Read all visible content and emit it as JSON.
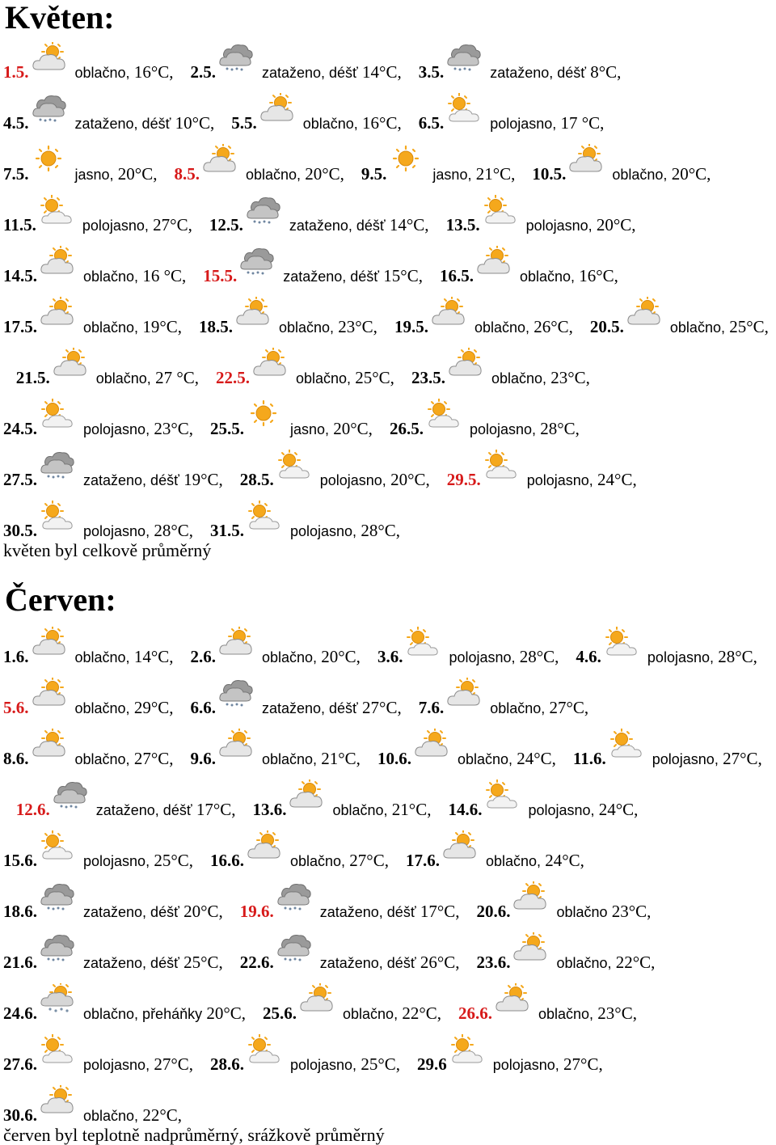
{
  "months": [
    {
      "title": "Květen:",
      "summary": "květen byl celkově průměrný",
      "entries": [
        {
          "date": "1.5.",
          "icon": "cloudy-sun-icon",
          "condition": "oblačno,",
          "temp": "16°C,",
          "highlight": true
        },
        {
          "date": "2.5.",
          "icon": "overcast-rain-icon",
          "condition": "zataženo, déšť",
          "temp": "14°C,",
          "highlight": false
        },
        {
          "date": "3.5.",
          "icon": "overcast-rain-icon",
          "condition": "zataženo, déšť",
          "temp": "8°C,",
          "highlight": false
        },
        {
          "date": "4.5.",
          "icon": "overcast-rain-icon",
          "condition": "zataženo, déšť",
          "temp": "10°C,",
          "highlight": false
        },
        {
          "date": "5.5.",
          "icon": "cloudy-sun-icon",
          "condition": "oblačno,",
          "temp": "16°C,",
          "highlight": false
        },
        {
          "date": "6.5.",
          "icon": "partly-sunny-icon",
          "condition": "polojasno,",
          "temp": "17 °C,",
          "highlight": false
        },
        {
          "date": "7.5.",
          "icon": "sun-icon",
          "condition": "jasno,",
          "temp": "20°C,",
          "highlight": false
        },
        {
          "date": "8.5.",
          "icon": "cloudy-sun-icon",
          "condition": "oblačno,",
          "temp": "20°C,",
          "highlight": true
        },
        {
          "date": "9.5.",
          "icon": "sun-icon",
          "condition": "jasno,",
          "temp": "21°C,",
          "highlight": false
        },
        {
          "date": "10.5.",
          "icon": "cloudy-sun-icon",
          "condition": "oblačno,",
          "temp": "20°C,",
          "highlight": false
        },
        {
          "date": "11.5.",
          "icon": "partly-sunny-icon",
          "condition": "polojasno,",
          "temp": "27°C,",
          "highlight": false
        },
        {
          "date": "12.5.",
          "icon": "overcast-rain-icon",
          "condition": "zataženo, déšť",
          "temp": "14°C,",
          "highlight": false
        },
        {
          "date": "13.5.",
          "icon": "partly-sunny-icon",
          "condition": "polojasno,",
          "temp": "20°C,",
          "highlight": false
        },
        {
          "date": "14.5.",
          "icon": "cloudy-sun-icon",
          "condition": "oblačno,",
          "temp": "16 °C,",
          "highlight": false
        },
        {
          "date": "15.5.",
          "icon": "overcast-rain-icon",
          "condition": "zataženo, déšť",
          "temp": "15°C,",
          "highlight": true
        },
        {
          "date": "16.5.",
          "icon": "cloudy-sun-icon",
          "condition": "oblačno,",
          "temp": "16°C,",
          "highlight": false
        },
        {
          "date": "17.5.",
          "icon": "cloudy-sun-icon",
          "condition": "oblačno,",
          "temp": "19°C,",
          "highlight": false
        },
        {
          "date": "18.5.",
          "icon": "cloudy-sun-icon",
          "condition": "oblačno,",
          "temp": "23°C,",
          "highlight": false
        },
        {
          "date": "19.5.",
          "icon": "cloudy-sun-icon",
          "condition": "oblačno,",
          "temp": "26°C,",
          "highlight": false
        },
        {
          "date": "20.5.",
          "icon": "cloudy-sun-icon",
          "condition": "oblačno,",
          "temp": "25°C,",
          "highlight": false
        },
        {
          "date": "21.5.",
          "icon": "cloudy-sun-icon",
          "condition": "oblačno,",
          "temp": "27 °C,",
          "highlight": false
        },
        {
          "date": "22.5.",
          "icon": "cloudy-sun-icon",
          "condition": "oblačno,",
          "temp": "25°C,",
          "highlight": true
        },
        {
          "date": "23.5.",
          "icon": "cloudy-sun-icon",
          "condition": "oblačno,",
          "temp": "23°C,",
          "highlight": false
        },
        {
          "date": "24.5.",
          "icon": "partly-sunny-icon",
          "condition": "polojasno,",
          "temp": "23°C,",
          "highlight": false
        },
        {
          "date": "25.5.",
          "icon": "sun-icon",
          "condition": "jasno,",
          "temp": "20°C,",
          "highlight": false
        },
        {
          "date": "26.5.",
          "icon": "partly-sunny-icon",
          "condition": "polojasno,",
          "temp": "28°C,",
          "highlight": false
        },
        {
          "date": "27.5.",
          "icon": "overcast-rain-icon",
          "condition": "zataženo, déšť",
          "temp": "19°C,",
          "highlight": false
        },
        {
          "date": "28.5.",
          "icon": "partly-sunny-icon",
          "condition": "polojasno,",
          "temp": "20°C,",
          "highlight": false
        },
        {
          "date": "29.5.",
          "icon": "partly-sunny-icon",
          "condition": "polojasno,",
          "temp": "24°C,",
          "highlight": true
        },
        {
          "date": "30.5.",
          "icon": "partly-sunny-icon",
          "condition": "polojasno,",
          "temp": "28°C,",
          "highlight": false
        },
        {
          "date": "31.5.",
          "icon": "partly-sunny-icon",
          "condition": "polojasno,",
          "temp": "28°C,",
          "highlight": false
        }
      ]
    },
    {
      "title": "Červen:",
      "summary": "červen byl teplotně nadprůměrný, srážkově průměrný",
      "entries": [
        {
          "date": "1.6.",
          "icon": "cloudy-sun-icon",
          "condition": "oblačno,",
          "temp": "14°C,",
          "highlight": false
        },
        {
          "date": "2.6.",
          "icon": "cloudy-sun-icon",
          "condition": "oblačno,",
          "temp": "20°C,",
          "highlight": false
        },
        {
          "date": "3.6.",
          "icon": "partly-sunny-icon",
          "condition": "polojasno,",
          "temp": "28°C,",
          "highlight": false
        },
        {
          "date": "4.6.",
          "icon": "partly-sunny-icon",
          "condition": "polojasno,",
          "temp": "28°C,",
          "highlight": false
        },
        {
          "date": "5.6.",
          "icon": "cloudy-sun-icon",
          "condition": "oblačno,",
          "temp": "29°C,",
          "highlight": true
        },
        {
          "date": "6.6.",
          "icon": "overcast-rain-icon",
          "condition": "zataženo, déšť",
          "temp": "27°C,",
          "highlight": false
        },
        {
          "date": "7.6.",
          "icon": "cloudy-sun-icon",
          "condition": "oblačno,",
          "temp": "27°C,",
          "highlight": false
        },
        {
          "date": "8.6.",
          "icon": "cloudy-sun-icon",
          "condition": "oblačno,",
          "temp": "27°C,",
          "highlight": false
        },
        {
          "date": "9.6.",
          "icon": "cloudy-sun-icon",
          "condition": "oblačno,",
          "temp": "21°C,",
          "highlight": false
        },
        {
          "date": "10.6.",
          "icon": "cloudy-sun-icon",
          "condition": "oblačno,",
          "temp": "24°C,",
          "highlight": false
        },
        {
          "date": "11.6.",
          "icon": "partly-sunny-icon",
          "condition": "polojasno,",
          "temp": "27°C,",
          "highlight": false
        },
        {
          "date": "12.6.",
          "icon": "overcast-rain-icon",
          "condition": "zataženo, déšť",
          "temp": "17°C,",
          "highlight": true
        },
        {
          "date": "13.6.",
          "icon": "cloudy-sun-icon",
          "condition": "oblačno,",
          "temp": "21°C,",
          "highlight": false
        },
        {
          "date": "14.6.",
          "icon": "partly-sunny-icon",
          "condition": "polojasno,",
          "temp": "24°C,",
          "highlight": false
        },
        {
          "date": "15.6.",
          "icon": "partly-sunny-icon",
          "condition": "polojasno,",
          "temp": "25°C,",
          "highlight": false
        },
        {
          "date": "16.6.",
          "icon": "cloudy-sun-icon",
          "condition": "oblačno,",
          "temp": "27°C,",
          "highlight": false
        },
        {
          "date": "17.6.",
          "icon": "cloudy-sun-icon",
          "condition": "oblačno,",
          "temp": "24°C,",
          "highlight": false
        },
        {
          "date": "18.6.",
          "icon": "overcast-rain-icon",
          "condition": "zataženo, déšť",
          "temp": "20°C,",
          "highlight": false
        },
        {
          "date": "19.6.",
          "icon": "overcast-rain-icon",
          "condition": "zataženo, déšť",
          "temp": "17°C,",
          "highlight": true
        },
        {
          "date": "20.6.",
          "icon": "cloudy-sun-icon",
          "condition": "oblačno",
          "temp": "23°C,",
          "highlight": false
        },
        {
          "date": "21.6.",
          "icon": "overcast-rain-icon",
          "condition": "zataženo, déšť",
          "temp": "25°C,",
          "highlight": false
        },
        {
          "date": "22.6.",
          "icon": "overcast-rain-icon",
          "condition": "zataženo, déšť",
          "temp": "26°C,",
          "highlight": false
        },
        {
          "date": "23.6.",
          "icon": "cloudy-sun-icon",
          "condition": "oblačno,",
          "temp": "22°C,",
          "highlight": false
        },
        {
          "date": "24.6.",
          "icon": "showers-icon",
          "condition": "oblačno, přeháňky",
          "temp": "20°C,",
          "highlight": false
        },
        {
          "date": "25.6.",
          "icon": "cloudy-sun-icon",
          "condition": "oblačno,",
          "temp": "22°C,",
          "highlight": false
        },
        {
          "date": "26.6.",
          "icon": "cloudy-sun-icon",
          "condition": "oblačno,",
          "temp": "23°C,",
          "highlight": true
        },
        {
          "date": "27.6.",
          "icon": "partly-sunny-icon",
          "condition": "polojasno,",
          "temp": "27°C,",
          "highlight": false
        },
        {
          "date": "28.6.",
          "icon": "partly-sunny-icon",
          "condition": "polojasno,",
          "temp": "25°C,",
          "highlight": false
        },
        {
          "date": "29.6",
          "icon": "partly-sunny-icon",
          "condition": "polojasno,",
          "temp": "27°C,",
          "highlight": false
        },
        {
          "date": "30.6.",
          "icon": "cloudy-sun-icon",
          "condition": "oblačno,",
          "temp": "22°C,",
          "highlight": false
        }
      ]
    }
  ]
}
